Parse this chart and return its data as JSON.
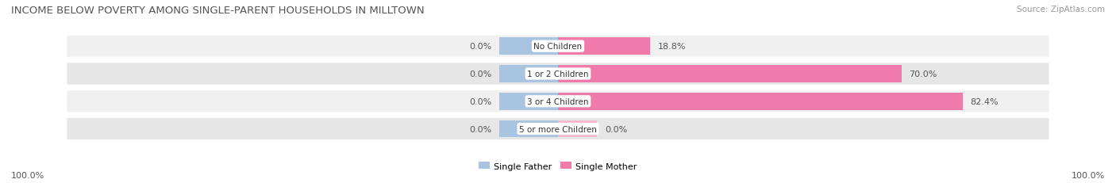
{
  "title": "INCOME BELOW POVERTY AMONG SINGLE-PARENT HOUSEHOLDS IN MILLTOWN",
  "source": "Source: ZipAtlas.com",
  "categories": [
    "No Children",
    "1 or 2 Children",
    "3 or 4 Children",
    "5 or more Children"
  ],
  "single_father": [
    0.0,
    0.0,
    0.0,
    0.0
  ],
  "single_mother": [
    18.8,
    70.0,
    82.4,
    0.0
  ],
  "father_color": "#a8c4e0",
  "mother_color": "#f07aaa",
  "mother_color_light": "#f8b8cf",
  "row_bg_even": "#f0f0f0",
  "row_bg_odd": "#e6e6e6",
  "father_label": "Single Father",
  "mother_label": "Single Mother",
  "left_label": "100.0%",
  "right_label": "100.0%",
  "max_value": 100.0,
  "title_fontsize": 9.5,
  "source_fontsize": 7.5,
  "label_fontsize": 8.0,
  "bar_label_fontsize": 8.0,
  "cat_fontsize": 7.5,
  "legend_fontsize": 8.0,
  "figsize": [
    14.06,
    2.32
  ],
  "dpi": 100,
  "bar_height": 0.62,
  "father_stub": 12.0,
  "mother_stub": 8.0
}
